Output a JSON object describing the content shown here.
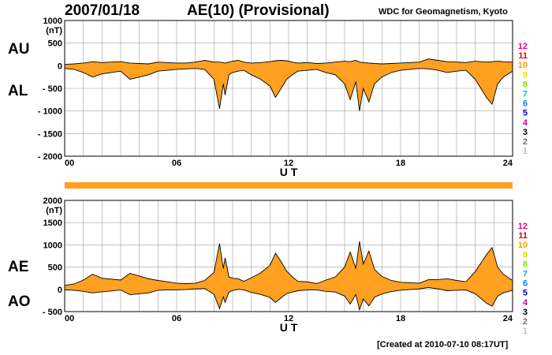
{
  "header": {
    "date": "2007/01/18",
    "title": "AE(10) (Provisional)",
    "organization": "WDC for Geomagnetism, Kyoto"
  },
  "footer": {
    "created": "[Created at 2010-07-10 08:17UT]"
  },
  "legend": {
    "numbers": [
      "12",
      "11",
      "10",
      "9",
      "8",
      "7",
      "6",
      "5",
      "4",
      "3",
      "2",
      "1"
    ],
    "colors": [
      "#ff0080",
      "#e00000",
      "#ffa000",
      "#e0e000",
      "#80e000",
      "#00c0c0",
      "#0080ff",
      "#0000c0",
      "#c000c0",
      "#000000",
      "#707070",
      "#c0c0c0"
    ]
  },
  "colors": {
    "fill": "#ffa020",
    "stroke": "#000000",
    "grid": "#a0a0a0",
    "status_bar": "#ffa020"
  },
  "chart_data": [
    {
      "type": "area",
      "panel": "AU / AL",
      "labels": {
        "upper": "AU",
        "lower": "AL"
      },
      "units": "(nT)",
      "xlabel": "U T",
      "xlim": [
        0,
        24
      ],
      "ylim": [
        -2000,
        1000
      ],
      "x_ticks": [
        "00",
        "06",
        "12",
        "18",
        "24"
      ],
      "y_ticks": [
        "1000",
        "500",
        "0",
        "- 500",
        "- 1000",
        "- 1500",
        "- 2000"
      ],
      "y_tick_values": [
        1000,
        500,
        0,
        -500,
        -1000,
        -1500,
        -2000
      ],
      "grid": true,
      "x": [
        0,
        0.5,
        1,
        1.5,
        2,
        2.5,
        3,
        3.5,
        4,
        4.5,
        5,
        5.5,
        6,
        6.5,
        7,
        7.5,
        8,
        8.3,
        8.5,
        8.6,
        8.8,
        9,
        9.3,
        9.6,
        10,
        10.5,
        11,
        11.3,
        11.6,
        11.9,
        12.2,
        12.5,
        13,
        13.5,
        14,
        14.5,
        15,
        15.3,
        15.6,
        15.8,
        16,
        16.3,
        16.6,
        17,
        17.5,
        18,
        18.5,
        19,
        19.5,
        20,
        20.5,
        21,
        21.5,
        22,
        22.3,
        22.6,
        22.9,
        23.2,
        23.5,
        24
      ],
      "series": [
        {
          "name": "AU",
          "values": [
            30,
            40,
            60,
            90,
            70,
            80,
            90,
            60,
            50,
            40,
            80,
            70,
            60,
            60,
            80,
            120,
            80,
            80,
            70,
            60,
            80,
            100,
            120,
            80,
            60,
            70,
            90,
            110,
            120,
            110,
            80,
            60,
            70,
            50,
            60,
            80,
            100,
            90,
            120,
            80,
            70,
            60,
            50,
            40,
            50,
            60,
            70,
            80,
            150,
            120,
            90,
            80,
            70,
            100,
            90,
            80,
            90,
            100,
            90,
            80
          ]
        },
        {
          "name": "AL",
          "values": [
            -60,
            -80,
            -150,
            -250,
            -180,
            -150,
            -120,
            -300,
            -250,
            -200,
            -120,
            -100,
            -80,
            -70,
            -60,
            -80,
            -300,
            -950,
            -400,
            -650,
            -200,
            -150,
            -120,
            -100,
            -200,
            -300,
            -450,
            -700,
            -500,
            -300,
            -200,
            -120,
            -100,
            -80,
            -150,
            -200,
            -400,
            -750,
            -350,
            -1000,
            -500,
            -800,
            -400,
            -250,
            -150,
            -100,
            -80,
            -60,
            -70,
            -100,
            -150,
            -120,
            -100,
            -300,
            -500,
            -700,
            -850,
            -400,
            -250,
            -120
          ]
        }
      ]
    },
    {
      "type": "area",
      "panel": "AE / AO",
      "labels": {
        "upper": "AE",
        "lower": "AO"
      },
      "units": "(nT)",
      "xlabel": "U T",
      "xlim": [
        0,
        24
      ],
      "ylim": [
        -500,
        2000
      ],
      "x_ticks": [
        "00",
        "06",
        "12",
        "18",
        "24"
      ],
      "y_ticks": [
        "2000",
        "1500",
        "1000",
        "500",
        "0",
        "- 500"
      ],
      "y_tick_values": [
        2000,
        1500,
        1000,
        500,
        0,
        -500
      ],
      "grid": true,
      "x": [
        0,
        0.5,
        1,
        1.5,
        2,
        2.5,
        3,
        3.5,
        4,
        4.5,
        5,
        5.5,
        6,
        6.5,
        7,
        7.5,
        8,
        8.3,
        8.5,
        8.6,
        8.8,
        9,
        9.3,
        9.6,
        10,
        10.5,
        11,
        11.3,
        11.6,
        11.9,
        12.2,
        12.5,
        13,
        13.5,
        14,
        14.5,
        15,
        15.3,
        15.6,
        15.8,
        16,
        16.3,
        16.6,
        17,
        17.5,
        18,
        18.5,
        19,
        19.5,
        20,
        20.5,
        21,
        21.5,
        22,
        22.3,
        22.6,
        22.9,
        23.2,
        23.5,
        24
      ],
      "series": [
        {
          "name": "AE",
          "values": [
            90,
            120,
            210,
            340,
            250,
            230,
            210,
            360,
            300,
            240,
            200,
            170,
            140,
            130,
            140,
            200,
            380,
            1030,
            470,
            710,
            280,
            250,
            240,
            180,
            260,
            370,
            540,
            810,
            620,
            410,
            280,
            180,
            170,
            130,
            210,
            280,
            500,
            840,
            470,
            1080,
            570,
            860,
            450,
            290,
            200,
            160,
            150,
            140,
            220,
            220,
            240,
            200,
            170,
            400,
            590,
            780,
            940,
            500,
            340,
            200
          ]
        },
        {
          "name": "AO",
          "values": [
            -15,
            -20,
            -45,
            -80,
            -55,
            -35,
            -15,
            -120,
            -100,
            -80,
            -20,
            -15,
            -10,
            -5,
            10,
            20,
            -110,
            -435,
            -165,
            -295,
            -60,
            -25,
            0,
            -10,
            -70,
            -115,
            -180,
            -295,
            -190,
            -95,
            -60,
            -30,
            -15,
            -15,
            -45,
            -60,
            -150,
            -330,
            -115,
            -460,
            -215,
            -370,
            -175,
            -105,
            -50,
            -20,
            -5,
            10,
            40,
            10,
            -30,
            -20,
            -15,
            -100,
            -205,
            -310,
            -380,
            -150,
            -80,
            -20
          ]
        }
      ]
    }
  ]
}
